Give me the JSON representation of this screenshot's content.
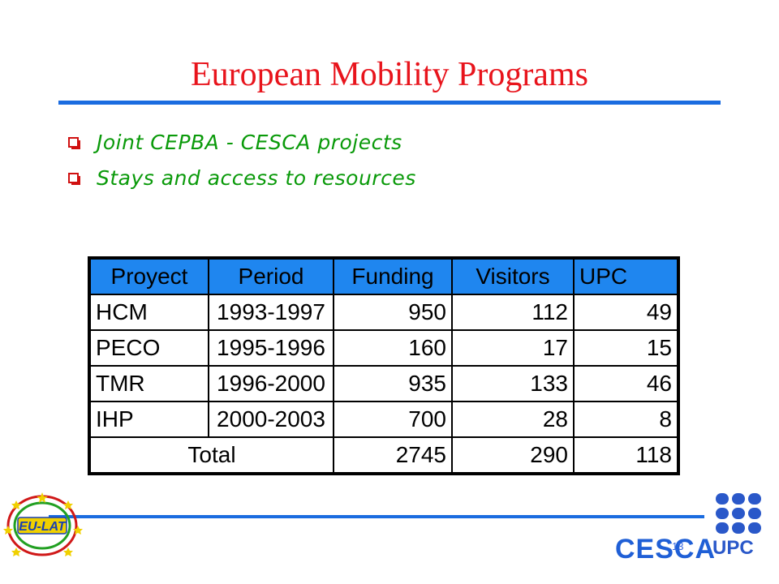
{
  "slide": {
    "title": "European Mobility Programs",
    "bullets": [
      "Joint CEPBA - CESCA projects",
      "Stays and access to resources"
    ]
  },
  "table": {
    "headers": [
      "Proyect",
      "Period",
      "Funding",
      "Visitors",
      "UPC"
    ],
    "rows": [
      [
        "HCM",
        "1993-1997",
        "950",
        "112",
        "49"
      ],
      [
        "PECO",
        "1995-1996",
        "160",
        "17",
        "15"
      ],
      [
        "TMR",
        "1996-2000",
        "935",
        "133",
        "46"
      ],
      [
        "IHP",
        "2000-2003",
        "700",
        "28",
        "8"
      ]
    ],
    "total": {
      "label": "Total",
      "funding": "2745",
      "visitors": "290",
      "upc": "118"
    }
  },
  "footer": {
    "left_logo": "EU-LAT",
    "center_logo": "CESCA",
    "right_logo": "UPC",
    "page_number": "13",
    "icons": [
      "eu-lat-logo",
      "cesca-logo",
      "upc-logo"
    ],
    "colors": {
      "title": "#e8141c",
      "bullets": "#0a9a0a",
      "rule": "#1a6ce0",
      "header_fill": "#1f86ef"
    }
  }
}
